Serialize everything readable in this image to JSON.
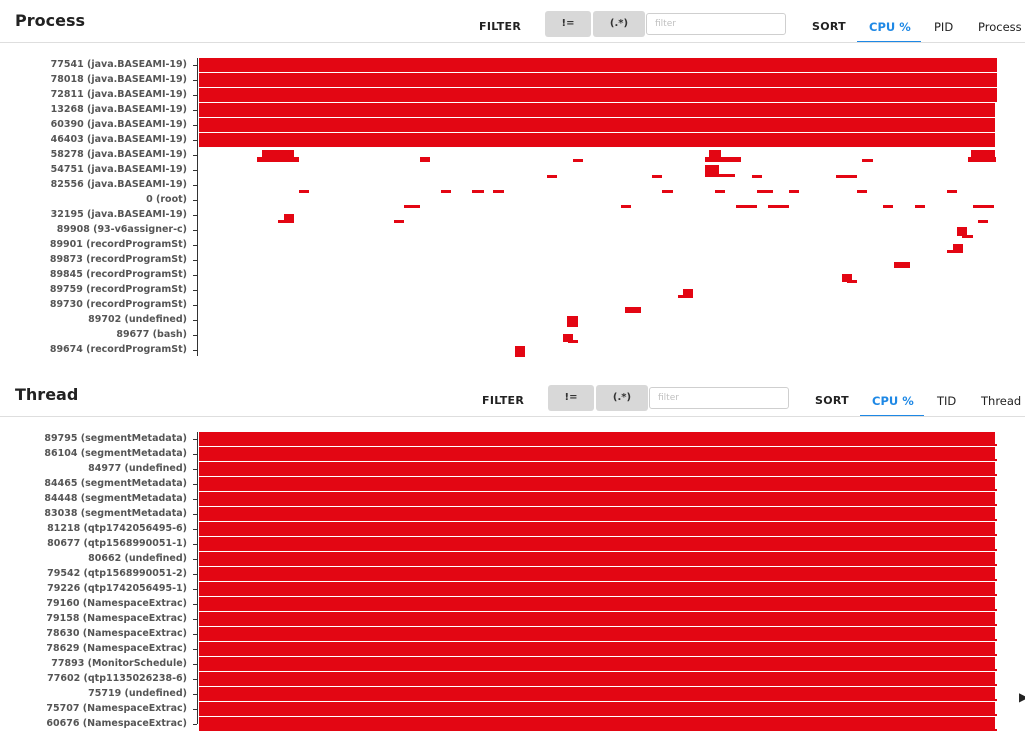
{
  "accent_color": "#1e88e5",
  "bar_color": "#e30613",
  "process": {
    "title": "Process",
    "filter_label": "FILTER",
    "not_equal_button": "!=",
    "regex_button": "(.*)",
    "filter_placeholder": "filter",
    "sort_label": "SORT",
    "tabs": [
      "CPU %",
      "PID",
      "Process n"
    ],
    "active_tab": "CPU %",
    "rows": [
      "77541 (java.BASEAMI-19)",
      "78018 (java.BASEAMI-19)",
      "72811 (java.BASEAMI-19)",
      "13268 (java.BASEAMI-19)",
      "60390 (java.BASEAMI-19)",
      "46403 (java.BASEAMI-19)",
      "58278 (java.BASEAMI-19)",
      "54751 (java.BASEAMI-19)",
      "82556 (java.BASEAMI-19)",
      "0 (root)",
      "32195 (java.BASEAMI-19)",
      "89908 (93-v6assigner-c)",
      "89901 (recordProgramSt)",
      "89873 (recordProgramSt)",
      "89845 (recordProgramSt)",
      "89759 (recordProgramSt)",
      "89730 (recordProgramSt)",
      "89702 (undefined)",
      "89677 (bash)",
      "89674 (recordProgramSt)"
    ]
  },
  "thread": {
    "title": "Thread",
    "filter_label": "FILTER",
    "not_equal_button": "!=",
    "regex_button": "(.*)",
    "filter_placeholder": "filter",
    "sort_label": "SORT",
    "tabs": [
      "CPU %",
      "TID",
      "Thread n"
    ],
    "active_tab": "CPU %",
    "rows": [
      "89795 (segmentMetadata)",
      "86104 (segmentMetadata)",
      "84977 (undefined)",
      "84465 (segmentMetadata)",
      "84448 (segmentMetadata)",
      "83038 (segmentMetadata)",
      "81218 (qtp1742056495-6)",
      "80677 (qtp1568990051-1)",
      "80662 (undefined)",
      "79542 (qtp1568990051-2)",
      "79226 (qtp1742056495-1)",
      "79160 (NamespaceExtrac)",
      "79158 (NamespaceExtrac)",
      "78630 (NamespaceExtrac)",
      "78629 (NamespaceExtrac)",
      "77893 (MonitorSchedule)",
      "77602 (qtp1135026238-6)",
      "75719 (undefined)",
      "75707 (NamespaceExtrac)",
      "60676 (NamespaceExtrac)"
    ]
  }
}
